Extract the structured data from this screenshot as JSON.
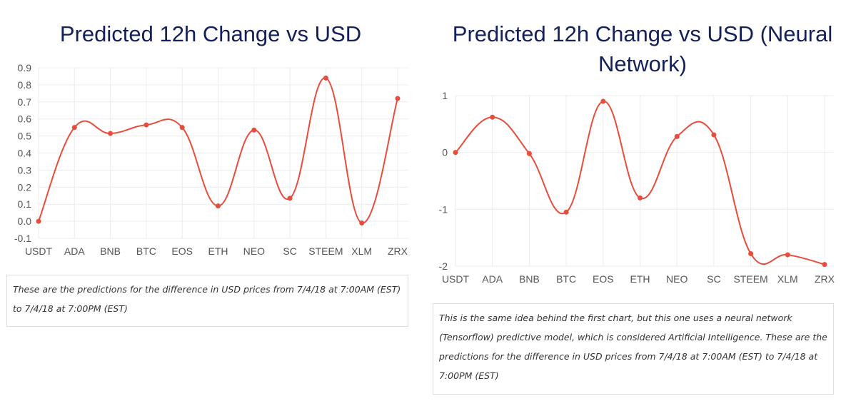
{
  "colors": {
    "title": "#15205a",
    "series": "#e74c3c",
    "grid": "#ececec",
    "axis_text": "#555555"
  },
  "chart_data": [
    {
      "type": "line",
      "title": "Predicted 12h Change vs USD",
      "xlabel": "",
      "ylabel": "",
      "categories": [
        "USDT",
        "ADA",
        "BNB",
        "BTC",
        "EOS",
        "ETH",
        "NEO",
        "SC",
        "STEEM",
        "XLM",
        "ZRX"
      ],
      "values": [
        0.0,
        0.55,
        0.515,
        0.565,
        0.55,
        0.09,
        0.535,
        0.135,
        0.84,
        -0.01,
        0.72
      ],
      "ylim": [
        -0.1,
        0.9
      ],
      "yticks": [
        "0.9",
        "0.8",
        "0.7",
        "0.6",
        "0.5",
        "0.4",
        "0.3",
        "0.2",
        "0.1",
        "0.0",
        "-0.1"
      ],
      "grid": true,
      "smooth": true,
      "caption": "These are the predictions for the difference in USD prices from 7/4/18 at 7:00AM (EST) to 7/4/18 at 7:00PM (EST)"
    },
    {
      "type": "line",
      "title": "Predicted 12h Change vs USD (Neural Network)",
      "xlabel": "",
      "ylabel": "",
      "categories": [
        "USDT",
        "ADA",
        "BNB",
        "BTC",
        "EOS",
        "ETH",
        "NEO",
        "SC",
        "STEEM",
        "XLM",
        "ZRX"
      ],
      "values": [
        0.0,
        0.62,
        -0.02,
        -1.05,
        0.9,
        -0.8,
        0.28,
        0.31,
        -1.78,
        -1.8,
        -1.97
      ],
      "ylim": [
        -2,
        1
      ],
      "yticks": [
        "1",
        "0",
        "-1",
        "-2"
      ],
      "grid": true,
      "smooth": true,
      "caption": "This is the same idea behind the first chart, but this one uses a neural network (Tensorflow) predictive model, which is considered Artificial Intelligence. These are the predictions for the difference in USD prices from 7/4/18 at 7:00AM (EST) to 7/4/18 at 7:00PM (EST)"
    }
  ]
}
